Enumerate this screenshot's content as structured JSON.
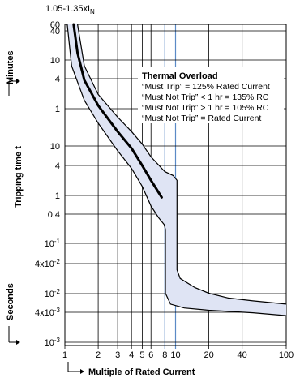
{
  "chart_data": {
    "type": "line",
    "title": "",
    "xlabel": "Multiple of Rated Current",
    "ylabel": "Tripping time t",
    "x_scale": "log",
    "xlim": [
      1,
      100
    ],
    "x_ticks": [
      1,
      2,
      3,
      4,
      5,
      6,
      8,
      10,
      20,
      40,
      100
    ],
    "x_tick_labels": [
      "1",
      "2",
      "3",
      "4",
      "5",
      "6",
      "8",
      "10",
      "20",
      "40",
      "100"
    ],
    "x_highlight_ticks": [
      8,
      10
    ],
    "top_annotation": {
      "prefix": "1.05-1.35xI",
      "subscript": "N"
    },
    "minutes_label": "Minutes",
    "seconds_label": "Seconds",
    "minutes_ticks": [
      "60",
      "40",
      "10",
      "4",
      "1"
    ],
    "seconds_ticks": [
      "10",
      "4",
      "1",
      "0.4",
      "10^-1",
      "4x10^-2",
      "10^-2",
      "4x10^-3",
      "10^-3"
    ],
    "band": {
      "name": "",
      "upper": [
        [
          1.3,
          3600
        ],
        [
          1.5,
          480
        ],
        [
          2,
          120
        ],
        [
          3,
          40
        ],
        [
          4,
          20
        ],
        [
          5,
          11
        ],
        [
          6,
          6
        ],
        [
          8,
          3
        ],
        [
          9.5,
          2.5
        ],
        [
          10.3,
          2
        ],
        [
          10.3,
          0.03
        ],
        [
          11,
          0.02
        ],
        [
          15,
          0.013
        ],
        [
          20,
          0.01
        ],
        [
          30,
          0.008
        ],
        [
          50,
          0.007
        ],
        [
          100,
          0.006
        ]
      ],
      "lower": [
        [
          1.05,
          3600
        ],
        [
          1.15,
          480
        ],
        [
          1.5,
          90
        ],
        [
          2,
          30
        ],
        [
          3,
          8
        ],
        [
          4,
          3.5
        ],
        [
          5,
          1.5
        ],
        [
          6,
          0.6
        ],
        [
          7,
          0.35
        ],
        [
          7.9,
          0.25
        ],
        [
          8.1,
          0.2
        ],
        [
          8.1,
          0.01
        ],
        [
          9,
          0.006
        ],
        [
          12,
          0.005
        ],
        [
          20,
          0.0045
        ],
        [
          50,
          0.004
        ],
        [
          100,
          0.0035
        ]
      ],
      "fill": "#dfe4f4",
      "stroke": "#000000"
    },
    "series": [
      {
        "name": "",
        "x": [
          1.2,
          1.3,
          1.5,
          2,
          3,
          4,
          5,
          6,
          7.5
        ],
        "y": [
          3600,
          900,
          240,
          70,
          20,
          9,
          4,
          2,
          0.9
        ],
        "color": "#000000"
      }
    ],
    "legend_title": "Thermal Overload",
    "legend_lines": [
      "“Must Trip” = 125% Rated Current",
      "“Must Not Trip” < 1 hr = 135% RC",
      "“Must Not Trip” > 1 hr = 105% RC",
      "“Must Not Trip” = Rated Current"
    ],
    "highlight_color": "#5b8ac6"
  }
}
